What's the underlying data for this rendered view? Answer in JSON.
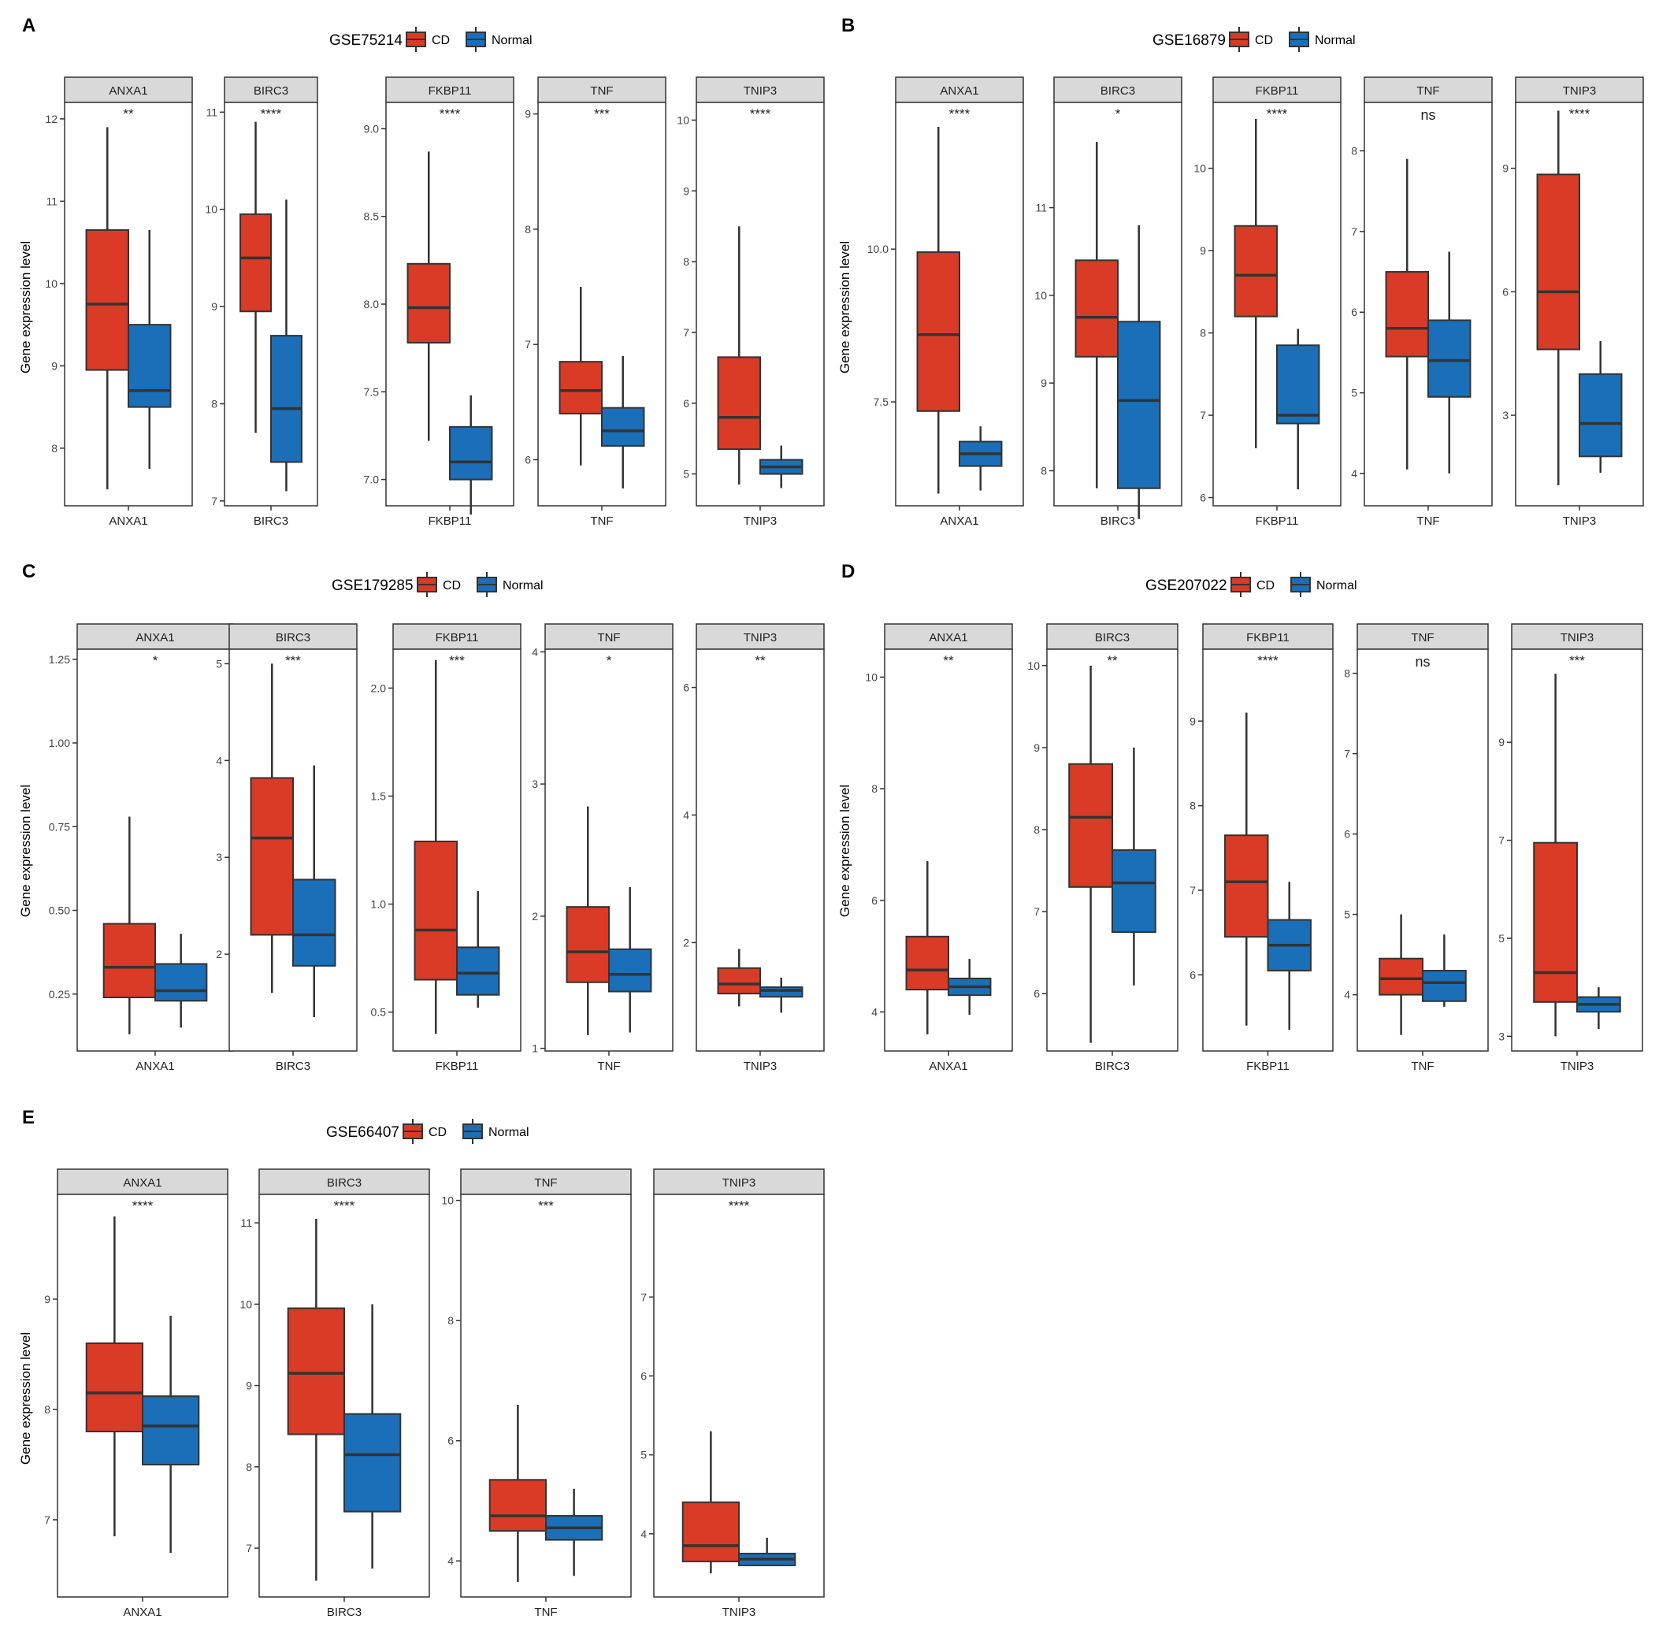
{
  "colors": {
    "cd": "#d93b26",
    "normal": "#1a6fb8",
    "strip": "#d9d9d9",
    "line": "#333333"
  },
  "legend_labels": [
    "CD",
    "Normal"
  ],
  "ylabel": "Gene expression level",
  "chart_data": [
    {
      "letter": "A",
      "dataset": "GSE75214",
      "type": "box",
      "facets": [
        {
          "gene": "ANXA1",
          "sig": "**",
          "ylim": [
            7.3,
            12.2
          ],
          "ticks": [
            8,
            9,
            10,
            11,
            12
          ],
          "tick_labels": [
            "8",
            "9",
            "10",
            "11",
            "12"
          ],
          "cd": [
            7.5,
            8.95,
            9.75,
            10.65,
            11.9
          ],
          "normal": [
            7.75,
            8.5,
            8.7,
            9.5,
            10.65
          ]
        },
        {
          "gene": "BIRC3",
          "sig": "****",
          "ylim": [
            6.95,
            11.1
          ],
          "ticks": [
            7,
            8,
            9,
            10,
            11
          ],
          "tick_labels": [
            "7",
            "8",
            "9",
            "10",
            "11"
          ],
          "cd": [
            7.7,
            8.95,
            9.5,
            9.95,
            10.9
          ],
          "normal": [
            7.1,
            7.4,
            7.95,
            8.7,
            10.1
          ]
        },
        {
          "gene": "FKBP11",
          "sig": "****",
          "ylim": [
            6.85,
            9.15
          ],
          "ticks": [
            7.0,
            7.5,
            8.0,
            8.5,
            9.0
          ],
          "tick_labels": [
            "7.0",
            "7.5",
            "8.0",
            "8.5",
            "9.0"
          ],
          "cd": [
            7.22,
            7.78,
            7.98,
            8.23,
            8.87
          ],
          "normal": [
            6.8,
            7.0,
            7.1,
            7.3,
            7.48
          ]
        },
        {
          "gene": "TNF",
          "sig": "***",
          "ylim": [
            5.6,
            9.1
          ],
          "ticks": [
            6,
            7,
            8,
            9
          ],
          "tick_labels": [
            "6",
            "7",
            "8",
            "9"
          ],
          "cd": [
            5.95,
            6.4,
            6.6,
            6.85,
            7.5
          ],
          "normal": [
            5.75,
            6.12,
            6.25,
            6.45,
            6.9
          ]
        },
        {
          "gene": "TNIP3",
          "sig": "****",
          "ylim": [
            4.55,
            10.25
          ],
          "ticks": [
            5,
            6,
            7,
            8,
            9,
            10
          ],
          "tick_labels": [
            "5",
            "6",
            "7",
            "8",
            "9",
            "10"
          ],
          "cd": [
            4.85,
            5.35,
            5.8,
            6.65,
            8.5
          ],
          "normal": [
            4.8,
            5.0,
            5.1,
            5.2,
            5.4
          ]
        }
      ]
    },
    {
      "letter": "B",
      "dataset": "GSE16879",
      "type": "box",
      "facets": [
        {
          "gene": "ANXA1",
          "sig": "****",
          "ylim": [
            5.8,
            12.4
          ],
          "ticks": [
            7.5,
            10.0
          ],
          "tick_labels": [
            "7.5",
            "10.0"
          ],
          "cd": [
            6.0,
            7.35,
            8.6,
            9.95,
            12.0
          ],
          "normal": [
            6.05,
            6.45,
            6.65,
            6.85,
            7.1
          ]
        },
        {
          "gene": "BIRC3",
          "sig": "*",
          "ylim": [
            7.6,
            12.2
          ],
          "ticks": [
            8,
            9,
            10,
            11
          ],
          "tick_labels": [
            "8",
            "9",
            "10",
            "11"
          ],
          "cd": [
            7.8,
            9.3,
            9.75,
            10.4,
            11.75
          ],
          "normal": [
            7.45,
            7.8,
            8.8,
            9.7,
            10.8
          ]
        },
        {
          "gene": "FKBP11",
          "sig": "****",
          "ylim": [
            5.9,
            10.8
          ],
          "ticks": [
            6,
            7,
            8,
            9,
            10
          ],
          "tick_labels": [
            "6",
            "7",
            "8",
            "9",
            "10"
          ],
          "cd": [
            6.6,
            8.2,
            8.7,
            9.3,
            10.6
          ],
          "normal": [
            6.1,
            6.9,
            7.0,
            7.85,
            8.05
          ]
        },
        {
          "gene": "TNF",
          "sig": "ns",
          "ylim": [
            3.6,
            8.6
          ],
          "ticks": [
            4,
            5,
            6,
            7,
            8
          ],
          "tick_labels": [
            "4",
            "5",
            "6",
            "7",
            "8"
          ],
          "cd": [
            4.05,
            5.45,
            5.8,
            6.5,
            7.9
          ],
          "normal": [
            4.0,
            4.95,
            5.4,
            5.9,
            6.75
          ]
        },
        {
          "gene": "TNIP3",
          "sig": "****",
          "ylim": [
            0.8,
            10.6
          ],
          "ticks": [
            3,
            6,
            9
          ],
          "tick_labels": [
            "3",
            "6",
            "9"
          ],
          "cd": [
            1.3,
            4.6,
            6.0,
            8.85,
            10.4
          ],
          "normal": [
            1.6,
            2.0,
            2.8,
            4.0,
            4.8
          ]
        }
      ]
    },
    {
      "letter": "C",
      "dataset": "GSE179285",
      "type": "box",
      "facets": [
        {
          "gene": "ANXA1",
          "sig": "*",
          "ylim": [
            0.08,
            1.28
          ],
          "ticks": [
            0.25,
            0.5,
            0.75,
            1.0,
            1.25
          ],
          "tick_labels": [
            "0.25",
            "0.50",
            "0.75",
            "1.00",
            "1.25"
          ],
          "cd": [
            0.13,
            0.24,
            0.33,
            0.46,
            0.78
          ],
          "normal": [
            0.15,
            0.23,
            0.26,
            0.34,
            0.43
          ]
        },
        {
          "gene": "BIRC3",
          "sig": "***",
          "ylim": [
            1.0,
            5.15
          ],
          "ticks": [
            2,
            3,
            4,
            5
          ],
          "tick_labels": [
            "2",
            "3",
            "4",
            "5"
          ],
          "cd": [
            1.6,
            2.2,
            3.2,
            3.82,
            5.0
          ],
          "normal": [
            1.35,
            1.88,
            2.2,
            2.77,
            3.95
          ]
        },
        {
          "gene": "FKBP11",
          "sig": "***",
          "ylim": [
            0.32,
            2.18
          ],
          "ticks": [
            0.5,
            1.0,
            1.5,
            2.0
          ],
          "tick_labels": [
            "0.5",
            "1.0",
            "1.5",
            "2.0"
          ],
          "cd": [
            0.4,
            0.65,
            0.88,
            1.29,
            2.13
          ],
          "normal": [
            0.52,
            0.58,
            0.68,
            0.8,
            1.06
          ]
        },
        {
          "gene": "TNF",
          "sig": "*",
          "ylim": [
            0.98,
            4.02
          ],
          "ticks": [
            1,
            2,
            3,
            4
          ],
          "tick_labels": [
            "1",
            "2",
            "3",
            "4"
          ],
          "cd": [
            1.1,
            1.5,
            1.73,
            2.07,
            2.83
          ],
          "normal": [
            1.12,
            1.43,
            1.56,
            1.75,
            2.22
          ]
        },
        {
          "gene": "TNIP3",
          "sig": "**",
          "ylim": [
            0.3,
            6.6
          ],
          "ticks": [
            2,
            4,
            6
          ],
          "tick_labels": [
            "2",
            "4",
            "6"
          ],
          "cd": [
            1.0,
            1.2,
            1.35,
            1.6,
            1.9
          ],
          "normal": [
            0.9,
            1.15,
            1.25,
            1.3,
            1.45
          ]
        }
      ]
    },
    {
      "letter": "D",
      "dataset": "GSE207022",
      "type": "box",
      "facets": [
        {
          "gene": "ANXA1",
          "sig": "**",
          "ylim": [
            3.3,
            10.5
          ],
          "ticks": [
            4,
            6,
            8,
            10
          ],
          "tick_labels": [
            "4",
            "6",
            "8",
            "10"
          ],
          "cd": [
            3.6,
            4.4,
            4.75,
            5.35,
            6.7
          ],
          "normal": [
            3.95,
            4.3,
            4.45,
            4.6,
            4.95
          ]
        },
        {
          "gene": "BIRC3",
          "sig": "**",
          "ylim": [
            5.3,
            10.2
          ],
          "ticks": [
            6,
            7,
            8,
            9,
            10
          ],
          "tick_labels": [
            "6",
            "7",
            "8",
            "9",
            "10"
          ],
          "cd": [
            5.4,
            7.3,
            8.15,
            8.8,
            10.0
          ],
          "normal": [
            6.1,
            6.75,
            7.35,
            7.75,
            9.0
          ]
        },
        {
          "gene": "FKBP11",
          "sig": "****",
          "ylim": [
            5.1,
            9.85
          ],
          "ticks": [
            6,
            7,
            8,
            9
          ],
          "tick_labels": [
            "6",
            "7",
            "8",
            "9"
          ],
          "cd": [
            5.4,
            6.45,
            7.1,
            7.65,
            9.1
          ],
          "normal": [
            5.35,
            6.05,
            6.35,
            6.65,
            7.1
          ]
        },
        {
          "gene": "TNF",
          "sig": "ns",
          "ylim": [
            3.3,
            8.3
          ],
          "ticks": [
            4,
            5,
            6,
            7,
            8
          ],
          "tick_labels": [
            "4",
            "5",
            "6",
            "7",
            "8"
          ],
          "cd": [
            3.5,
            4.0,
            4.2,
            4.45,
            5.0
          ],
          "normal": [
            3.85,
            3.92,
            4.15,
            4.3,
            4.75
          ]
        },
        {
          "gene": "TNIP3",
          "sig": "***",
          "ylim": [
            2.7,
            10.9
          ],
          "ticks": [
            3,
            5,
            7,
            9
          ],
          "tick_labels": [
            "3",
            "5",
            "7",
            "9"
          ],
          "cd": [
            3.0,
            3.7,
            4.3,
            6.95,
            10.4
          ],
          "normal": [
            3.15,
            3.5,
            3.65,
            3.8,
            4.0
          ]
        }
      ]
    },
    {
      "letter": "E",
      "dataset": "GSE66407",
      "type": "box",
      "facets": [
        {
          "gene": "ANXA1",
          "sig": "****",
          "ylim": [
            6.3,
            9.95
          ],
          "ticks": [
            7,
            8,
            9
          ],
          "tick_labels": [
            "7",
            "8",
            "9"
          ],
          "cd": [
            6.85,
            7.8,
            8.15,
            8.6,
            9.75
          ],
          "normal": [
            6.7,
            7.5,
            7.85,
            8.12,
            8.85
          ]
        },
        {
          "gene": "BIRC3",
          "sig": "****",
          "ylim": [
            6.4,
            11.35
          ],
          "ticks": [
            7,
            8,
            9,
            10,
            11
          ],
          "tick_labels": [
            "7",
            "8",
            "9",
            "10",
            "11"
          ],
          "cd": [
            6.6,
            8.4,
            9.15,
            9.95,
            11.05
          ],
          "normal": [
            6.75,
            7.45,
            8.15,
            8.65,
            10.0
          ]
        },
        {
          "gene": "TNF",
          "sig": "***",
          "ylim": [
            3.4,
            10.1
          ],
          "ticks": [
            4,
            6,
            8,
            10
          ],
          "tick_labels": [
            "4",
            "6",
            "8",
            "10"
          ],
          "cd": [
            3.65,
            4.5,
            4.75,
            5.35,
            6.6
          ],
          "normal": [
            3.75,
            4.35,
            4.55,
            4.75,
            5.2
          ]
        },
        {
          "gene": "TNIP3",
          "sig": "****",
          "ylim": [
            3.2,
            8.3
          ],
          "ticks": [
            4,
            5,
            6,
            7
          ],
          "tick_labels": [
            "4",
            "5",
            "6",
            "7"
          ],
          "cd": [
            3.5,
            3.65,
            3.85,
            4.4,
            5.3
          ],
          "normal": [
            3.6,
            3.6,
            3.68,
            3.75,
            3.95
          ]
        }
      ]
    }
  ]
}
